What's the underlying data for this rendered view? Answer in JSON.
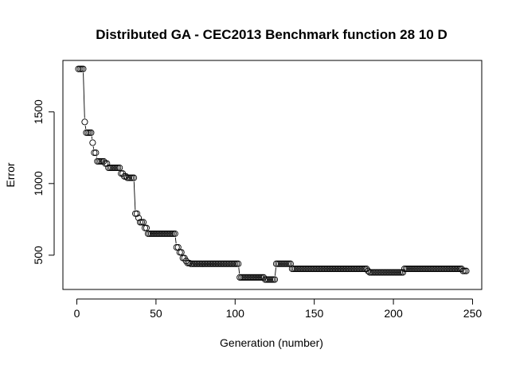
{
  "chart_data": {
    "type": "scatter",
    "title": "Distributed GA - CEC2013 Benchmark function  28 10 D",
    "xlabel": "Generation (number)",
    "ylabel": "Error",
    "xlim": [
      1,
      246
    ],
    "ylim": [
      320,
      1800
    ],
    "x_ticks": [
      0,
      50,
      100,
      150,
      200,
      250
    ],
    "y_ticks": [
      500,
      1000,
      1500
    ],
    "x_tick_labels": [
      "0",
      "50",
      "100",
      "150",
      "200",
      "250"
    ],
    "y_tick_labels": [
      "500",
      "1000",
      "1500"
    ],
    "marker": "open-circle",
    "connect_lines_for_gaps": true,
    "legend": "none",
    "grid": false,
    "series": [
      {
        "x_start": 1,
        "values": [
          1800,
          1800,
          1800,
          1800,
          1430,
          1355,
          1355,
          1355,
          1355,
          1285,
          1215,
          1215,
          1155,
          1155,
          1155,
          1155,
          1155,
          1140,
          1140,
          1110,
          1110,
          1110,
          1110,
          1110,
          1110,
          1110,
          1110,
          1070,
          1070,
          1050,
          1050,
          1040,
          1040,
          1040,
          1040,
          1040,
          790,
          790,
          760,
          730,
          730,
          730,
          690,
          690,
          650,
          650,
          650,
          650,
          650,
          650,
          650,
          650,
          650,
          650,
          650,
          650,
          650,
          650,
          650,
          650,
          650,
          650,
          555,
          555,
          520,
          520,
          480,
          480,
          460,
          445,
          445,
          440,
          440,
          440,
          440,
          440,
          440,
          440,
          440,
          440,
          440,
          440,
          440,
          440,
          440,
          440,
          440,
          440,
          440,
          440,
          440,
          440,
          440,
          440,
          440,
          440,
          440,
          440,
          440,
          440,
          440,
          440,
          345,
          345,
          345,
          345,
          345,
          345,
          345,
          345,
          345,
          345,
          345,
          345,
          345,
          345,
          345,
          345,
          330,
          330,
          330,
          330,
          330,
          330,
          330,
          440,
          440,
          440,
          440,
          440,
          440,
          440,
          440,
          440,
          440,
          405,
          405,
          405,
          405,
          405,
          405,
          405,
          405,
          405,
          405,
          405,
          405,
          405,
          405,
          405,
          405,
          405,
          405,
          405,
          405,
          405,
          405,
          405,
          405,
          405,
          405,
          405,
          405,
          405,
          405,
          405,
          405,
          405,
          405,
          405,
          405,
          405,
          405,
          405,
          405,
          405,
          405,
          405,
          405,
          405,
          405,
          405,
          405,
          390,
          380,
          380,
          380,
          380,
          380,
          380,
          380,
          380,
          380,
          380,
          380,
          380,
          380,
          380,
          380,
          380,
          380,
          380,
          380,
          380,
          380,
          380,
          405,
          405,
          405,
          405,
          405,
          405,
          405,
          405,
          405,
          405,
          405,
          405,
          405,
          405,
          405,
          405,
          405,
          405,
          405,
          405,
          405,
          405,
          405,
          405,
          405,
          405,
          405,
          405,
          405,
          405,
          405,
          405,
          405,
          405,
          405,
          405,
          405,
          390,
          390,
          390
        ]
      }
    ]
  }
}
